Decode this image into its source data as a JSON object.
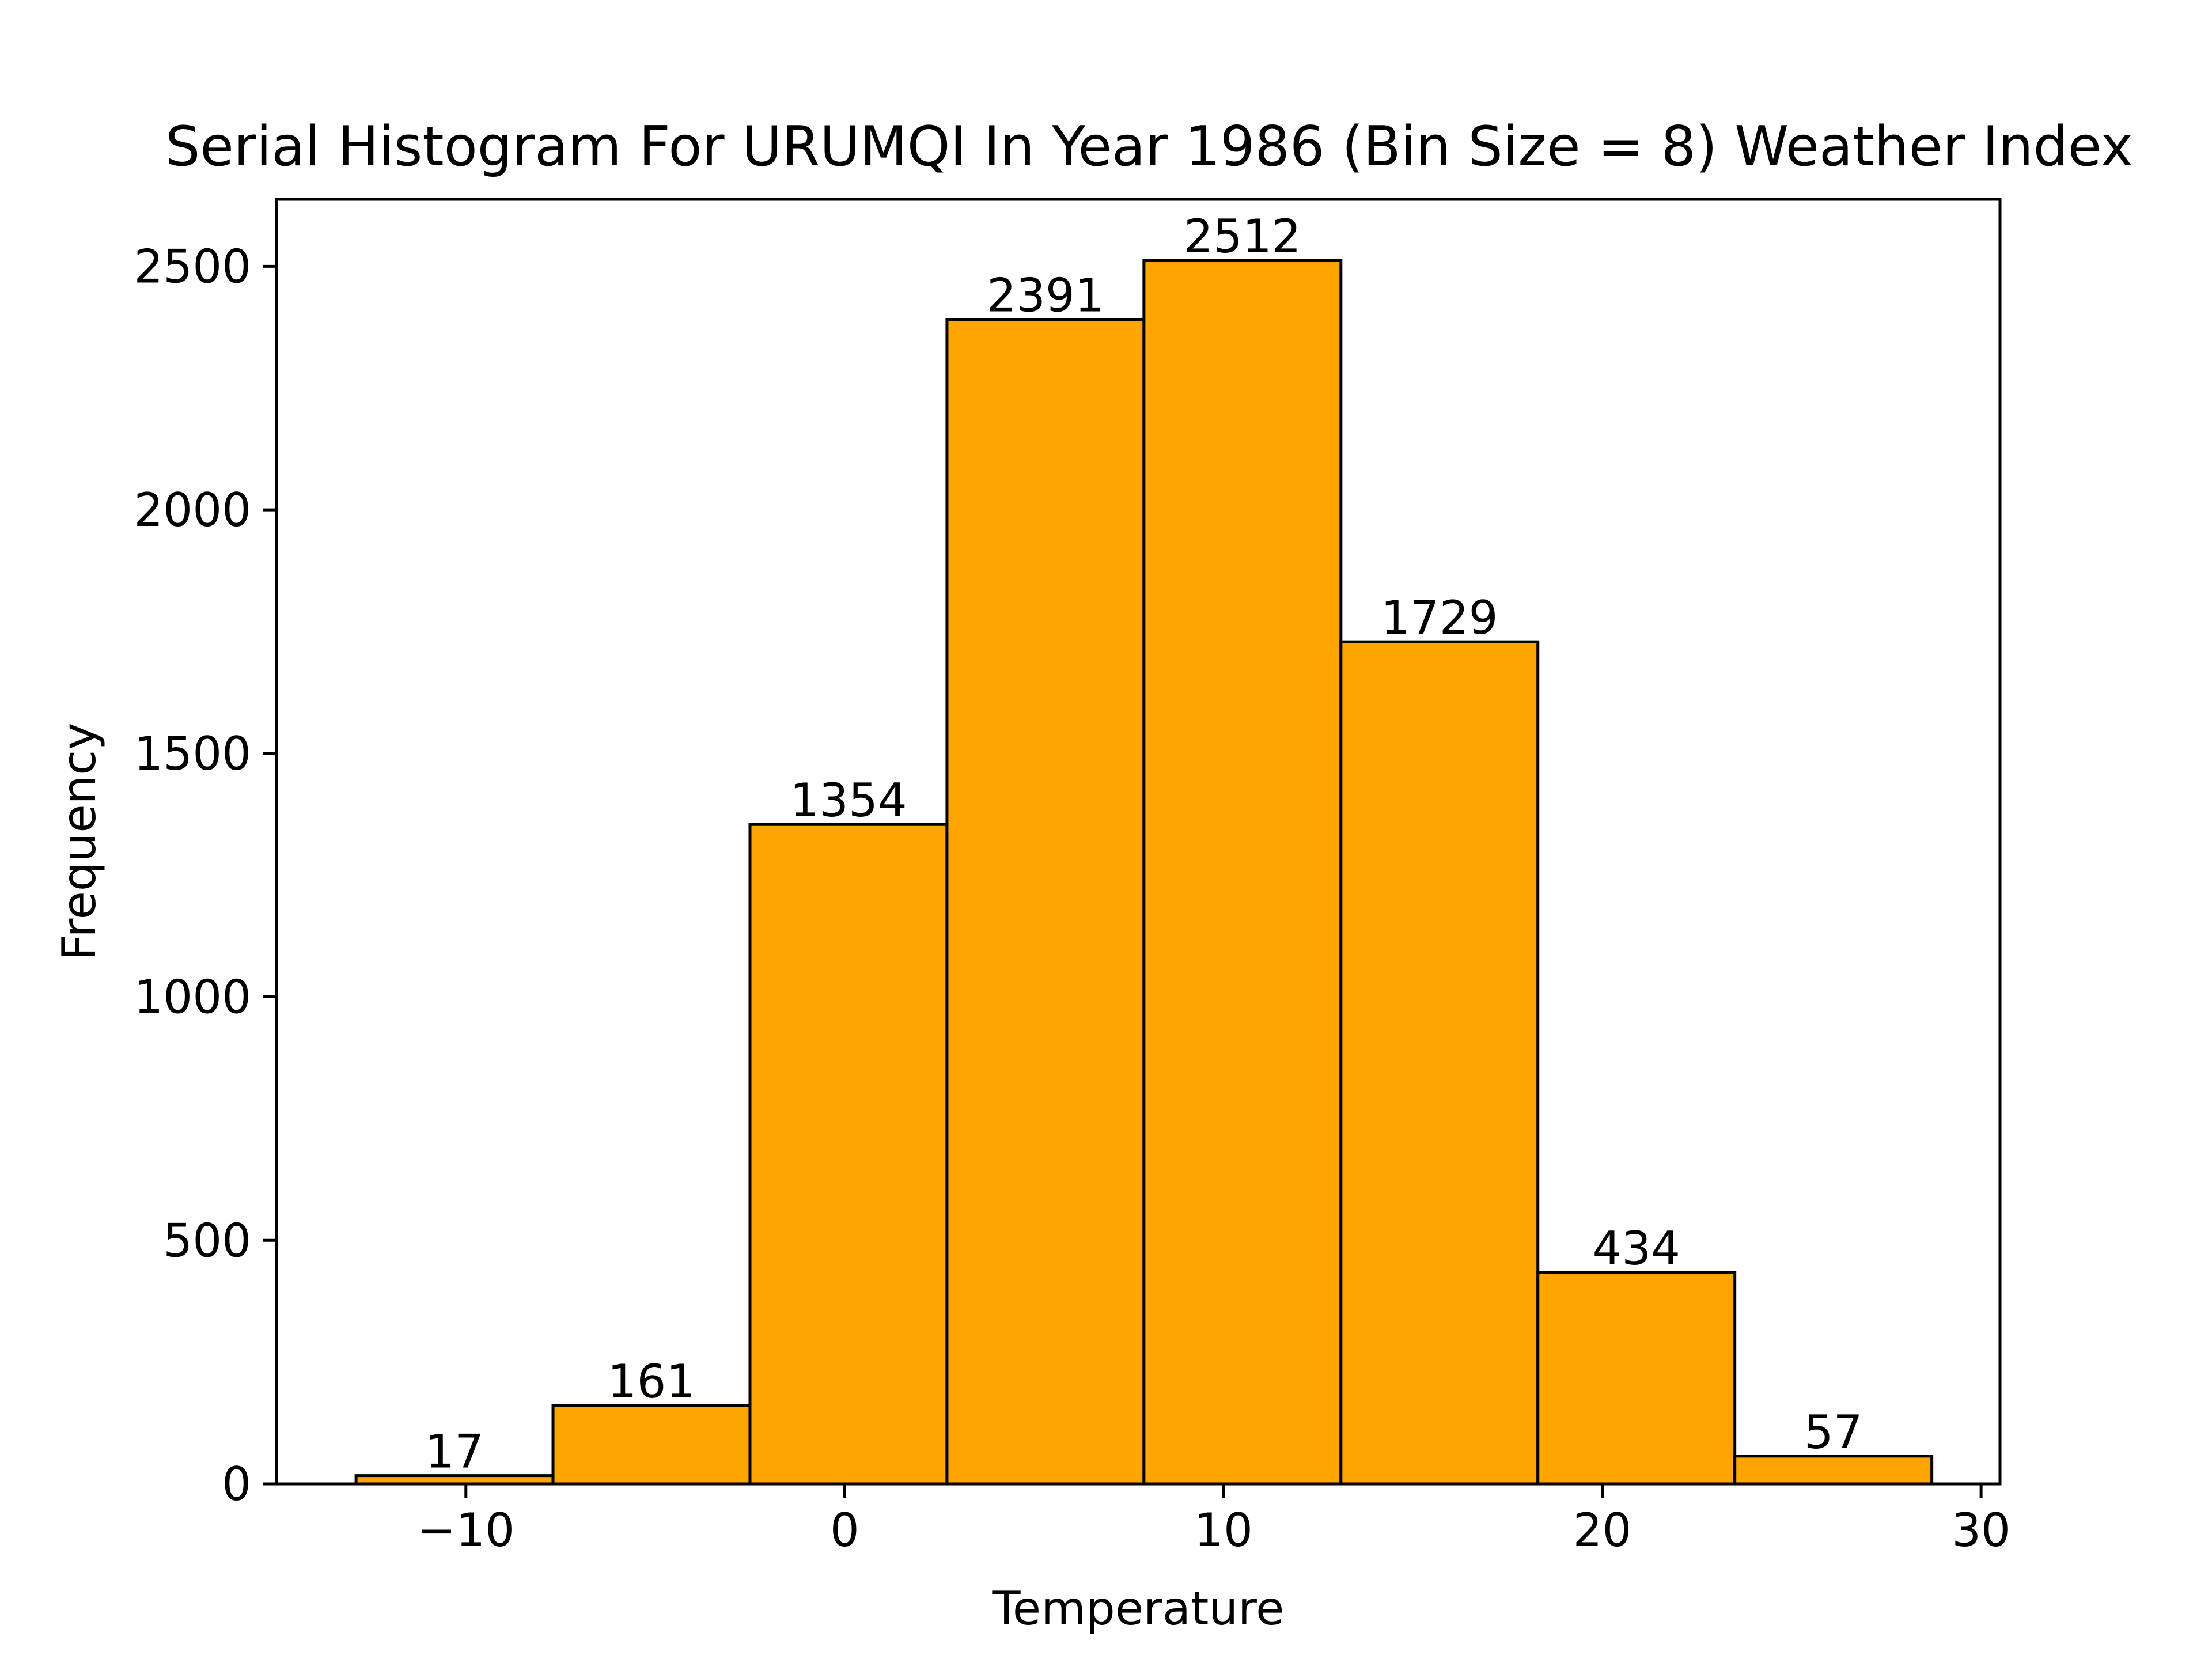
{
  "chart_data": {
    "type": "bar",
    "title": "Serial Histogram For URUMQI In Year 1986 (Bin Size = 8) Weather Index",
    "xlabel": "Temperature",
    "ylabel": "Frequency",
    "bin_edges": [
      -12.9,
      -7.7,
      -2.5,
      2.7,
      7.9,
      13.1,
      18.3,
      23.5,
      28.7
    ],
    "values": [
      17,
      161,
      1354,
      2391,
      2512,
      1729,
      434,
      57
    ],
    "data_labels": [
      "17",
      "161",
      "1354",
      "2391",
      "2512",
      "1729",
      "434",
      "57"
    ],
    "xlim": [
      -15.0,
      30.5
    ],
    "ylim": [
      0,
      2637.6
    ],
    "xticks": [
      -10,
      0,
      10,
      20,
      30
    ],
    "xtick_labels": [
      "−10",
      "0",
      "10",
      "20",
      "30"
    ],
    "yticks": [
      0,
      500,
      1000,
      1500,
      2000,
      2500
    ],
    "ytick_labels": [
      "0",
      "500",
      "1000",
      "1500",
      "2000",
      "2500"
    ],
    "grid": false,
    "legend": "none",
    "colors": {
      "bar_fill": "#ffa500",
      "bar_edge": "#000000",
      "axes": "#000000"
    }
  }
}
